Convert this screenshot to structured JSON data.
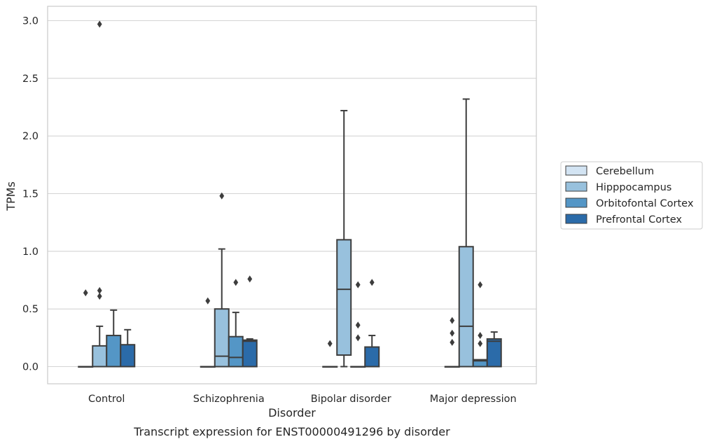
{
  "chart_data": {
    "type": "box",
    "title": "",
    "caption": "Transcript expression for ENST00000491296 by disorder",
    "xlabel": "Disorder",
    "ylabel": "TPMs",
    "ylim": [
      -0.15,
      3.13
    ],
    "yticks": [
      "0.0",
      "0.5",
      "1.0",
      "1.5",
      "2.0",
      "2.5",
      "3.0"
    ],
    "grid": true,
    "legend_position": "right",
    "categories": [
      "Control",
      "Schizophrenia",
      "Bipolar disorder",
      "Major depression"
    ],
    "series": [
      {
        "name": "Cerebellum",
        "color": "#d3e4f3",
        "boxes": [
          {
            "q1": 0,
            "median": 0,
            "q3": 0,
            "whisker_low": 0,
            "whisker_high": 0,
            "outliers": [
              0.64
            ]
          },
          {
            "q1": 0,
            "median": 0,
            "q3": 0,
            "whisker_low": 0,
            "whisker_high": 0,
            "outliers": [
              0.57
            ]
          },
          {
            "q1": 0,
            "median": 0,
            "q3": 0,
            "whisker_low": 0,
            "whisker_high": 0,
            "outliers": [
              0.2
            ]
          },
          {
            "q1": 0,
            "median": 0,
            "q3": 0,
            "whisker_low": 0,
            "whisker_high": 0,
            "outliers": [
              0.21,
              0.29,
              0.4
            ]
          }
        ]
      },
      {
        "name": "Hipppocampus",
        "color": "#98c1dd",
        "boxes": [
          {
            "q1": 0,
            "median": 0,
            "q3": 0.18,
            "whisker_low": 0,
            "whisker_high": 0.35,
            "outliers": [
              0.61,
              0.66,
              2.97
            ]
          },
          {
            "q1": 0,
            "median": 0.09,
            "q3": 0.5,
            "whisker_low": 0,
            "whisker_high": 1.02,
            "outliers": [
              1.48
            ]
          },
          {
            "q1": 0.1,
            "median": 0.67,
            "q3": 1.1,
            "whisker_low": 0,
            "whisker_high": 2.22,
            "outliers": []
          },
          {
            "q1": 0,
            "median": 0.35,
            "q3": 1.04,
            "whisker_low": 0,
            "whisker_high": 2.32,
            "outliers": []
          }
        ]
      },
      {
        "name": "Orbitofontal Cortex",
        "color": "#5496c6",
        "boxes": [
          {
            "q1": 0,
            "median": 0,
            "q3": 0.27,
            "whisker_low": 0,
            "whisker_high": 0.49,
            "outliers": []
          },
          {
            "q1": 0,
            "median": 0.08,
            "q3": 0.26,
            "whisker_low": 0,
            "whisker_high": 0.47,
            "outliers": [
              0.73
            ]
          },
          {
            "q1": 0,
            "median": 0,
            "q3": 0,
            "whisker_low": 0,
            "whisker_high": 0,
            "outliers": [
              0.25,
              0.36,
              0.71
            ]
          },
          {
            "q1": 0,
            "median": 0.05,
            "q3": 0.06,
            "whisker_low": 0,
            "whisker_high": 0.06,
            "outliers": [
              0.2,
              0.27,
              0.71
            ]
          }
        ]
      },
      {
        "name": "Prefrontal Cortex",
        "color": "#2b6ba9",
        "boxes": [
          {
            "q1": 0,
            "median": 0,
            "q3": 0.19,
            "whisker_low": 0,
            "whisker_high": 0.32,
            "outliers": []
          },
          {
            "q1": 0,
            "median": 0.22,
            "q3": 0.23,
            "whisker_low": 0,
            "whisker_high": 0.24,
            "outliers": [
              0.76
            ]
          },
          {
            "q1": 0,
            "median": 0,
            "q3": 0.17,
            "whisker_low": 0,
            "whisker_high": 0.27,
            "outliers": [
              0.73
            ]
          },
          {
            "q1": 0,
            "median": 0.22,
            "q3": 0.24,
            "whisker_low": 0,
            "whisker_high": 0.3,
            "outliers": []
          }
        ]
      }
    ]
  }
}
